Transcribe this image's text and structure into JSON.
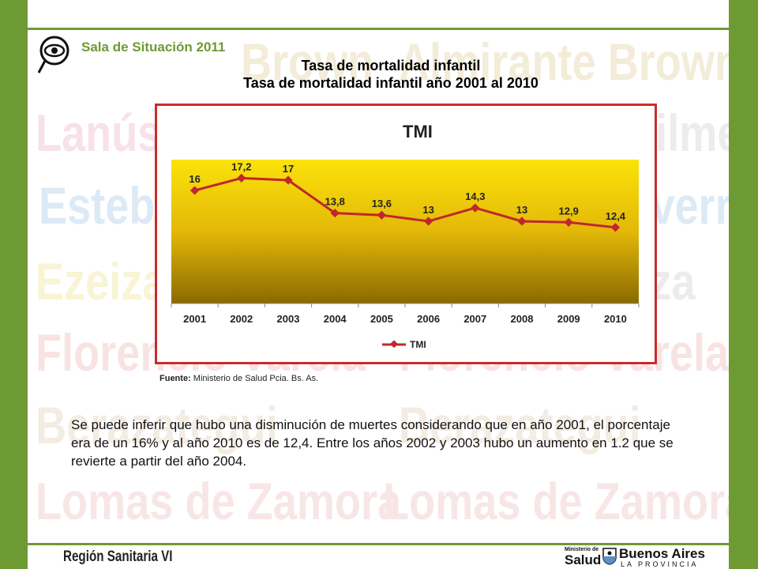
{
  "header": {
    "logo_text": "Sala de Situación 2011",
    "title_line1": "Tasa de mortalidad infantil",
    "title_line2": "Tasa de mortalidad infantil año 2001 al 2010"
  },
  "watermark_words": [
    "Brown",
    "Almirante Brown",
    "Lanús",
    "Esteban",
    "Echeverría",
    "Ezeiza",
    "Ezeiza",
    "Quilmes",
    "Florencio Varela",
    "Florencio Varela",
    "Berazategui",
    "Berazategui",
    "Lomas de Zamora",
    "Lomas de Zamora"
  ],
  "chart_data": {
    "type": "line",
    "title": "TMI",
    "categories": [
      "2001",
      "2002",
      "2003",
      "2004",
      "2005",
      "2006",
      "2007",
      "2008",
      "2009",
      "2010"
    ],
    "series": [
      {
        "name": "TMI",
        "values": [
          16,
          17.2,
          17,
          13.8,
          13.6,
          13,
          14.3,
          13,
          12.9,
          12.4
        ]
      }
    ],
    "data_labels": [
      "16",
      "17,2",
      "17",
      "13,8",
      "13,6",
      "13",
      "14,3",
      "13",
      "12,9",
      "12,4"
    ],
    "legend_position": "bottom",
    "grid": false,
    "colors": {
      "line": "#c0272d",
      "plot_top": "#fbe30a",
      "plot_bottom": "#8a6a00",
      "border": "#cc2a2a"
    }
  },
  "source": {
    "label": "Fuente:",
    "text": "Ministerio de Salud Pcia. Bs. As."
  },
  "description": "Se puede inferir que hubo una disminución de muertes considerando que en año 2001, el porcentaje era  de un 16% y al año 2010 es de 12,4. Entre los años 2002 y 2003 hubo un aumento en 1.2 que se revierte a partir del año 2004.",
  "footer": {
    "region": "Región Sanitaria VI",
    "ministerio": "Ministerio de",
    "salud": "Salud",
    "buenos_aires": "Buenos Aires",
    "la_provincia": "LA PROVINCIA"
  }
}
